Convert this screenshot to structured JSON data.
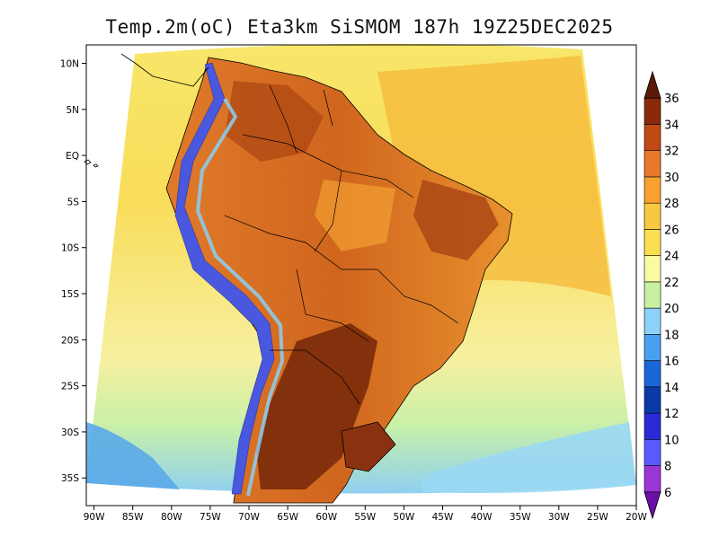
{
  "title": "Temp.2m(oC) Eta3km SiSMOM 187h 19Z25DEC2025",
  "map": {
    "lat_labels": [
      "10N",
      "5N",
      "EQ",
      "5S",
      "10S",
      "15S",
      "20S",
      "25S",
      "30S",
      "35S"
    ],
    "lat_values": [
      10,
      5,
      0,
      -5,
      -10,
      -15,
      -20,
      -25,
      -30,
      -35
    ],
    "lon_labels": [
      "90W",
      "85W",
      "80W",
      "75W",
      "70W",
      "65W",
      "60W",
      "55W",
      "50W",
      "45W",
      "40W",
      "35W",
      "30W",
      "25W",
      "20W"
    ],
    "lon_values": [
      -90,
      -85,
      -80,
      -75,
      -70,
      -65,
      -60,
      -55,
      -50,
      -45,
      -40,
      -35,
      -30,
      -25,
      -20
    ],
    "lat_range": [
      -38,
      12
    ],
    "lon_range": [
      -91,
      -20
    ]
  },
  "colorbar": {
    "labels": [
      "6",
      "8",
      "10",
      "12",
      "14",
      "16",
      "18",
      "20",
      "22",
      "24",
      "26",
      "28",
      "30",
      "32",
      "34",
      "36"
    ],
    "colors": [
      "#6a0fa8",
      "#9b36d6",
      "#5a5aff",
      "#2a2ad8",
      "#0a3aa8",
      "#1a66d8",
      "#4aa0f0",
      "#8cd2f8",
      "#c8f0a0",
      "#fafaa0",
      "#fae050",
      "#fac840",
      "#f8a030",
      "#e8782a",
      "#c04a14",
      "#8a2a0a",
      "#5a1a06"
    ],
    "units": "oC"
  }
}
